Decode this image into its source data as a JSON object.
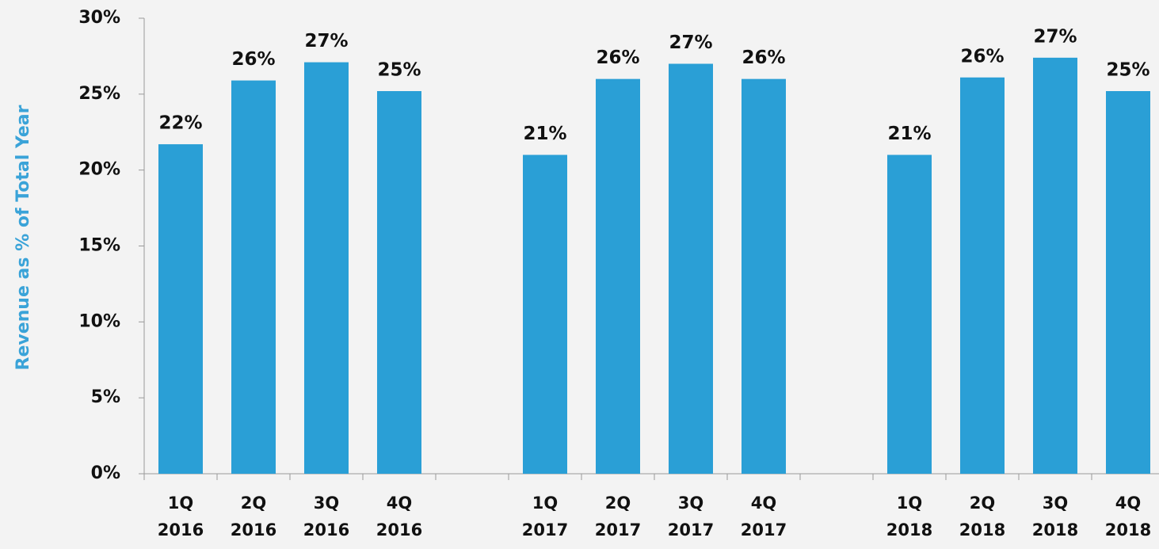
{
  "chart_data": {
    "type": "bar",
    "y_label": "Revenue as % of Total Year",
    "categories": [
      "1Q\n2016",
      "2Q\n2016",
      "3Q\n2016",
      "4Q\n2016",
      null,
      "1Q\n2017",
      "2Q\n2017",
      "3Q\n2017",
      "4Q\n2017",
      null,
      "1Q\n2018",
      "2Q\n2018",
      "3Q\n2018",
      "4Q\n2018"
    ],
    "values": [
      21.7,
      25.9,
      27.1,
      25.2,
      null,
      21.0,
      26.0,
      27.0,
      26.0,
      null,
      21.0,
      26.1,
      27.4,
      25.2
    ],
    "value_labels": [
      "22%",
      "26%",
      "27%",
      "25%",
      null,
      "21%",
      "26%",
      "27%",
      "26%",
      null,
      "21%",
      "26%",
      "27%",
      "25%"
    ],
    "color": "#2a9fd6",
    "ylim": [
      0,
      30
    ],
    "yticks": [
      {
        "value": 0,
        "label": "0%"
      },
      {
        "value": 5,
        "label": "5%"
      },
      {
        "value": 10,
        "label": "10%"
      },
      {
        "value": 15,
        "label": "15%"
      },
      {
        "value": 20,
        "label": "20%"
      },
      {
        "value": 25,
        "label": "25%"
      },
      {
        "value": 30,
        "label": "30%"
      }
    ],
    "grid": false
  }
}
